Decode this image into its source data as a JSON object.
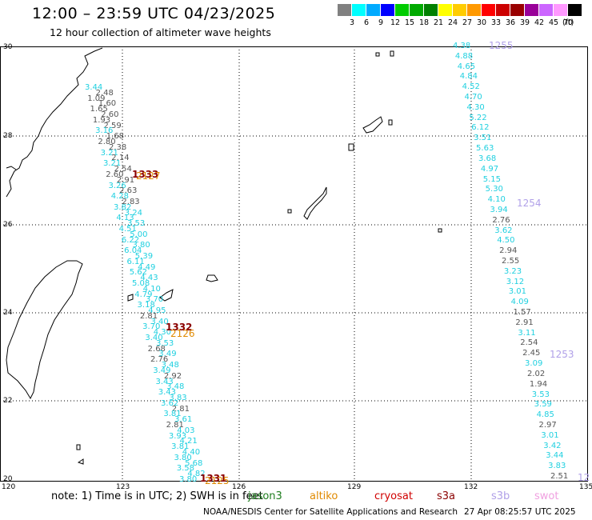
{
  "header": {
    "title": "12:00 – 23:59 UTC 04/23/2025",
    "subtitle": "12 hour collection of altimeter wave heights"
  },
  "color_scale": {
    "colors": [
      "#808080",
      "#00ffff",
      "#00aaff",
      "#0000ff",
      "#00cc00",
      "#00aa00",
      "#008000",
      "#ffff00",
      "#ffcc00",
      "#ff9900",
      "#ff0000",
      "#cc0000",
      "#990000",
      "#990099",
      "#cc66ff",
      "#ff99ff",
      "#000000"
    ],
    "labels": [
      "3",
      "6",
      "9",
      "12",
      "15",
      "18",
      "21",
      "24",
      "27",
      "30",
      "33",
      "36",
      "39",
      "42",
      "45",
      "70"
    ],
    "units": "(ft)"
  },
  "map": {
    "lat_labels": [
      "30",
      "28",
      "26",
      "24",
      "22",
      "20"
    ],
    "lon_labels": [
      "120",
      "123",
      "126",
      "129",
      "132",
      "135"
    ],
    "track_colors": {
      "cyan": "#20d0e0",
      "gray": "#555555"
    },
    "passes": [
      {
        "label": "1333",
        "color": "#8b0000"
      },
      {
        "label": "2127",
        "color": "#e08a00"
      },
      {
        "label": "1332",
        "color": "#8b0000"
      },
      {
        "label": "2126",
        "color": "#e08a00"
      },
      {
        "label": "1331",
        "color": "#8b0000"
      },
      {
        "label": "2125",
        "color": "#e08a00"
      },
      {
        "label": "1255",
        "color": "#b0a0e8"
      },
      {
        "label": "1254",
        "color": "#b0a0e8"
      },
      {
        "label": "1253",
        "color": "#b0a0e8"
      },
      {
        "label": "12",
        "color": "#b0a0e8"
      }
    ],
    "right_track": [
      {
        "v": "4.38",
        "c": "cyan"
      },
      {
        "v": "4.88",
        "c": "cyan"
      },
      {
        "v": "4.65",
        "c": "cyan"
      },
      {
        "v": "4.84",
        "c": "cyan"
      },
      {
        "v": "4.52",
        "c": "cyan"
      },
      {
        "v": "4.70",
        "c": "cyan"
      },
      {
        "v": "4.30",
        "c": "cyan"
      },
      {
        "v": "5.22",
        "c": "cyan"
      },
      {
        "v": "6.12",
        "c": "cyan"
      },
      {
        "v": "3.51",
        "c": "cyan"
      },
      {
        "v": "5.63",
        "c": "cyan"
      },
      {
        "v": "3.68",
        "c": "cyan"
      },
      {
        "v": "4.97",
        "c": "cyan"
      },
      {
        "v": "5.15",
        "c": "cyan"
      },
      {
        "v": "5.30",
        "c": "cyan"
      },
      {
        "v": "4.10",
        "c": "cyan"
      },
      {
        "v": "3.94",
        "c": "cyan"
      },
      {
        "v": "2.76",
        "c": "gray"
      },
      {
        "v": "3.62",
        "c": "cyan"
      },
      {
        "v": "4.50",
        "c": "cyan"
      },
      {
        "v": "2.94",
        "c": "gray"
      },
      {
        "v": "2.55",
        "c": "gray"
      },
      {
        "v": "3.23",
        "c": "cyan"
      },
      {
        "v": "3.12",
        "c": "cyan"
      },
      {
        "v": "3.01",
        "c": "cyan"
      },
      {
        "v": "4.09",
        "c": "cyan"
      },
      {
        "v": "1.57",
        "c": "gray"
      },
      {
        "v": "2.91",
        "c": "gray"
      },
      {
        "v": "3.11",
        "c": "cyan"
      },
      {
        "v": "2.54",
        "c": "gray"
      },
      {
        "v": "2.45",
        "c": "gray"
      },
      {
        "v": "3.09",
        "c": "cyan"
      },
      {
        "v": "2.02",
        "c": "gray"
      },
      {
        "v": "1.94",
        "c": "gray"
      },
      {
        "v": "3.53",
        "c": "cyan"
      },
      {
        "v": "3.59",
        "c": "cyan"
      },
      {
        "v": "4.85",
        "c": "cyan"
      },
      {
        "v": "2.97",
        "c": "gray"
      },
      {
        "v": "3.01",
        "c": "cyan"
      },
      {
        "v": "3.42",
        "c": "cyan"
      },
      {
        "v": "3.44",
        "c": "cyan"
      },
      {
        "v": "3.83",
        "c": "cyan"
      },
      {
        "v": "2.51",
        "c": "gray"
      }
    ],
    "left_track": [
      {
        "v": "3.44",
        "c": "cyan"
      },
      {
        "v": "2.48",
        "c": "gray"
      },
      {
        "v": "1.09",
        "c": "gray"
      },
      {
        "v": "1.60",
        "c": "gray"
      },
      {
        "v": "1.65",
        "c": "gray"
      },
      {
        "v": "2.60",
        "c": "gray"
      },
      {
        "v": "1.93",
        "c": "gray"
      },
      {
        "v": "2.59",
        "c": "gray"
      },
      {
        "v": "3.16",
        "c": "cyan"
      },
      {
        "v": "1.68",
        "c": "gray"
      },
      {
        "v": "2.80",
        "c": "gray"
      },
      {
        "v": "2.38",
        "c": "gray"
      },
      {
        "v": "3.21",
        "c": "cyan"
      },
      {
        "v": "2.14",
        "c": "gray"
      },
      {
        "v": "3.21",
        "c": "cyan"
      },
      {
        "v": "2.54",
        "c": "gray"
      },
      {
        "v": "2.60",
        "c": "gray"
      },
      {
        "v": "2.91",
        "c": "gray"
      },
      {
        "v": "3.26",
        "c": "cyan"
      },
      {
        "v": "2.63",
        "c": "gray"
      },
      {
        "v": "4.28",
        "c": "cyan"
      },
      {
        "v": "2.83",
        "c": "gray"
      },
      {
        "v": "3.82",
        "c": "cyan"
      },
      {
        "v": "3.24",
        "c": "cyan"
      },
      {
        "v": "4.13",
        "c": "cyan"
      },
      {
        "v": "3.53",
        "c": "cyan"
      },
      {
        "v": "4.51",
        "c": "cyan"
      },
      {
        "v": "5.00",
        "c": "cyan"
      },
      {
        "v": "6.22",
        "c": "cyan"
      },
      {
        "v": "3.80",
        "c": "cyan"
      },
      {
        "v": "6.04",
        "c": "cyan"
      },
      {
        "v": "5.39",
        "c": "cyan"
      },
      {
        "v": "6.11",
        "c": "cyan"
      },
      {
        "v": "4.49",
        "c": "cyan"
      },
      {
        "v": "5.62",
        "c": "cyan"
      },
      {
        "v": "4.43",
        "c": "cyan"
      },
      {
        "v": "5.08",
        "c": "cyan"
      },
      {
        "v": "4.10",
        "c": "cyan"
      },
      {
        "v": "4.79",
        "c": "cyan"
      },
      {
        "v": "3.70",
        "c": "cyan"
      },
      {
        "v": "3.18",
        "c": "cyan"
      },
      {
        "v": "4.95",
        "c": "cyan"
      },
      {
        "v": "2.81",
        "c": "gray"
      },
      {
        "v": "3.40",
        "c": "cyan"
      },
      {
        "v": "3.70",
        "c": "cyan"
      },
      {
        "v": "4.30",
        "c": "cyan"
      },
      {
        "v": "3.40",
        "c": "cyan"
      },
      {
        "v": "3.53",
        "c": "cyan"
      },
      {
        "v": "2.68",
        "c": "gray"
      },
      {
        "v": "3.49",
        "c": "cyan"
      },
      {
        "v": "2.76",
        "c": "gray"
      },
      {
        "v": "3.48",
        "c": "cyan"
      },
      {
        "v": "3.49",
        "c": "cyan"
      },
      {
        "v": "2.92",
        "c": "gray"
      },
      {
        "v": "3.43",
        "c": "cyan"
      },
      {
        "v": "3.48",
        "c": "cyan"
      },
      {
        "v": "3.43",
        "c": "cyan"
      },
      {
        "v": "3.83",
        "c": "cyan"
      },
      {
        "v": "3.62",
        "c": "cyan"
      },
      {
        "v": "2.81",
        "c": "gray"
      },
      {
        "v": "3.81",
        "c": "cyan"
      },
      {
        "v": "3.61",
        "c": "cyan"
      },
      {
        "v": "2.81",
        "c": "gray"
      },
      {
        "v": "4.03",
        "c": "cyan"
      },
      {
        "v": "3.93",
        "c": "cyan"
      },
      {
        "v": "4.21",
        "c": "cyan"
      },
      {
        "v": "3.81",
        "c": "cyan"
      },
      {
        "v": "4.40",
        "c": "cyan"
      },
      {
        "v": "3.80",
        "c": "cyan"
      },
      {
        "v": "5.68",
        "c": "cyan"
      },
      {
        "v": "3.58",
        "c": "cyan"
      },
      {
        "v": "4.82",
        "c": "cyan"
      },
      {
        "v": "3.80",
        "c": "cyan"
      }
    ]
  },
  "footer": {
    "note": "note: 1) Time is in UTC; 2) SWH is in feet",
    "satellites": [
      {
        "name": "jason3",
        "color": "#1e7d1e"
      },
      {
        "name": "altiko",
        "color": "#e08a00"
      },
      {
        "name": "cryosat",
        "color": "#d00000"
      },
      {
        "name": "s3a",
        "color": "#8b0000"
      },
      {
        "name": "s3b",
        "color": "#b0a0e8"
      },
      {
        "name": "swot",
        "color": "#f0a0e0"
      }
    ],
    "credit": "NOAA/NESDIS Center for Satellite Applications and Research",
    "timestamp": "27 Apr 08:25:57 UTC 2025"
  }
}
